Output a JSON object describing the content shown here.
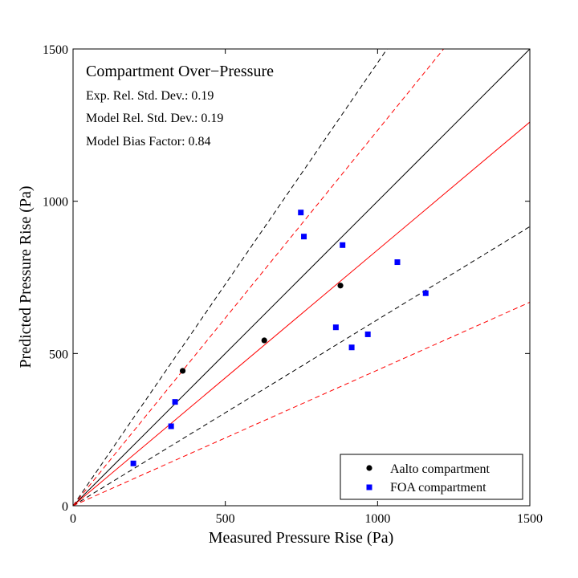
{
  "chart_data": {
    "type": "scatter",
    "title": "Compartment Over−Pressure",
    "stats": [
      "Exp. Rel. Std. Dev.: 0.19",
      "Model Rel. Std. Dev.: 0.19",
      "Model Bias Factor: 0.84"
    ],
    "xlabel": "Measured Pressure Rise (Pa)",
    "ylabel": "Predicted Pressure Rise (Pa)",
    "xlim": [
      0,
      1500
    ],
    "ylim": [
      0,
      1500
    ],
    "xticks": [
      0,
      500,
      1000,
      1500
    ],
    "yticks": [
      0,
      500,
      1000,
      1500
    ],
    "grid": false,
    "legend_position": "bottom-right",
    "reference_lines": [
      {
        "kind": "identity",
        "slope": 1.0,
        "style": "solid",
        "color": "#000000"
      },
      {
        "kind": "bias",
        "slope": 0.84,
        "style": "solid",
        "color": "#ff0000"
      },
      {
        "kind": "exp-upper",
        "slope": 1.4545,
        "style": "dashed",
        "color": "#000000"
      },
      {
        "kind": "exp-lower",
        "slope": 0.6111,
        "style": "dashed",
        "color": "#000000"
      },
      {
        "kind": "model-upper",
        "slope": 1.2327,
        "style": "dashed",
        "color": "#ff0000"
      },
      {
        "kind": "model-lower",
        "slope": 0.4455,
        "style": "dashed",
        "color": "#ff0000"
      }
    ],
    "series": [
      {
        "name": "Aalto compartment",
        "marker": "circle",
        "color": "#000000",
        "points": [
          [
            360,
            443
          ],
          [
            628,
            543
          ],
          [
            878,
            723
          ]
        ]
      },
      {
        "name": "FOA compartment",
        "marker": "square",
        "color": "#0000ff",
        "points": [
          [
            198,
            139
          ],
          [
            322,
            261
          ],
          [
            335,
            341
          ],
          [
            748,
            963
          ],
          [
            758,
            884
          ],
          [
            885,
            856
          ],
          [
            863,
            586
          ],
          [
            915,
            520
          ],
          [
            968,
            563
          ],
          [
            1065,
            800
          ],
          [
            1158,
            698
          ]
        ]
      }
    ]
  }
}
